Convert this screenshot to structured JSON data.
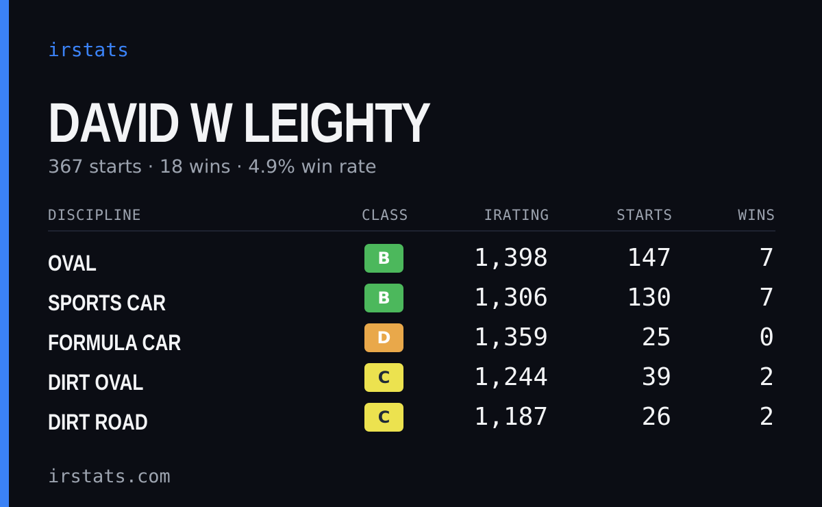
{
  "brand": "irstats",
  "driver": {
    "name": "DAVID W LEIGHTY",
    "summary": "367 starts · 18 wins · 4.9% win rate"
  },
  "table": {
    "headers": {
      "discipline": "DISCIPLINE",
      "class": "CLASS",
      "irating": "IRATING",
      "starts": "STARTS",
      "wins": "WINS"
    },
    "rows": [
      {
        "discipline": "OVAL",
        "class": "B",
        "class_color": "#4cb85c",
        "irating": "1,398",
        "starts": "147",
        "wins": "7"
      },
      {
        "discipline": "SPORTS CAR",
        "class": "B",
        "class_color": "#4cb85c",
        "irating": "1,306",
        "starts": "130",
        "wins": "7"
      },
      {
        "discipline": "FORMULA CAR",
        "class": "D",
        "class_color": "#e9a84a",
        "irating": "1,359",
        "starts": "25",
        "wins": "0"
      },
      {
        "discipline": "DIRT OVAL",
        "class": "C",
        "class_color": "#ece24f",
        "irating": "1,244",
        "starts": "39",
        "wins": "2"
      },
      {
        "discipline": "DIRT ROAD",
        "class": "C",
        "class_color": "#ece24f",
        "irating": "1,187",
        "starts": "26",
        "wins": "2"
      }
    ]
  },
  "footer": "irstats.com",
  "colors": {
    "background": "#0b0d14",
    "accent": "#3b82f6",
    "text": "#f3f4f6",
    "muted": "#9ca3af"
  }
}
